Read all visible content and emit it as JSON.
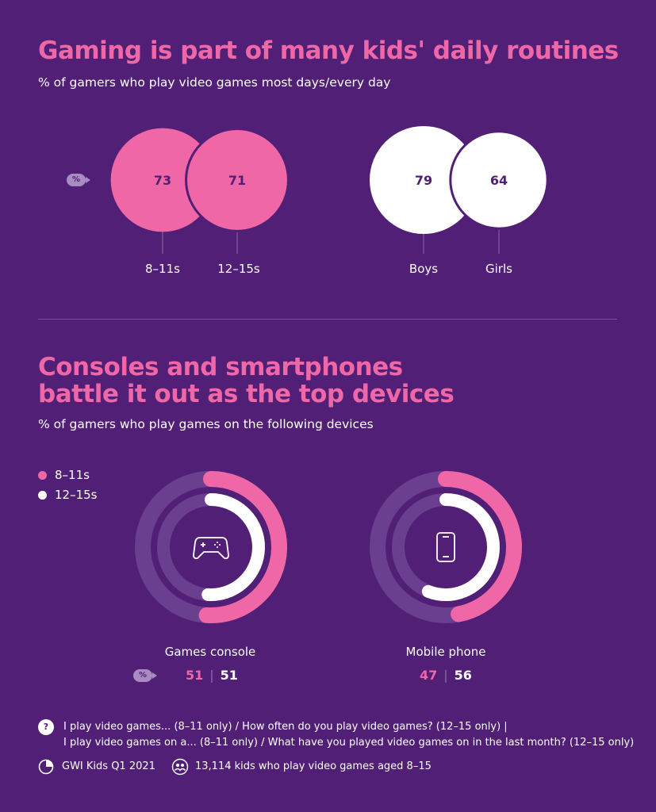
{
  "section1": {
    "title": "Gaming is part of many kids' daily routines",
    "subtitle": "% of gamers who play video games most days/every day"
  },
  "section2": {
    "title_line1": "Consoles and smartphones",
    "title_line2": "battle it out as the top devices",
    "subtitle": "% of gamers who play games on the following devices"
  },
  "pct_badge": "%",
  "chart_data": [
    {
      "type": "bubble",
      "categories": [
        "8–11s",
        "12–15s"
      ],
      "values": [
        73,
        71
      ],
      "color": "#ef67a6"
    },
    {
      "type": "bubble",
      "categories": [
        "Boys",
        "Girls"
      ],
      "values": [
        79,
        64
      ],
      "color": "#ffffff"
    },
    {
      "type": "radial-bar",
      "categories": [
        "Games console",
        "Mobile phone"
      ],
      "series": [
        {
          "name": "8–11s",
          "values": [
            51,
            47
          ],
          "color": "#ef67a6"
        },
        {
          "name": "12–15s",
          "values": [
            51,
            56
          ],
          "color": "#ffffff"
        }
      ],
      "ylim": [
        0,
        100
      ],
      "icons": [
        "gamepad-icon",
        "smartphone-icon"
      ]
    }
  ],
  "footer": {
    "question_icon": "?",
    "question_line1": "I play video games... (8–11 only) / How often do you play video games? (12–15 only) |",
    "question_line2": "I play video games on a... (8–11 only) / What have you played video games on in the last month? (12–15 only)",
    "source": "GWI Kids Q1 2021",
    "sample": "13,114 kids who play video games aged 8–15"
  }
}
